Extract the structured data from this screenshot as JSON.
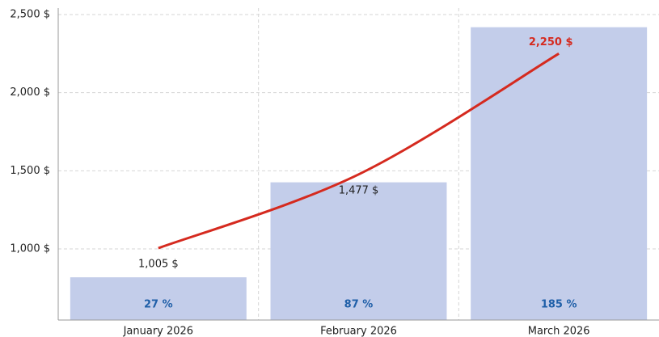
{
  "chart_data": {
    "type": "combo",
    "categories": [
      "January 2026",
      "February 2026",
      "March 2026"
    ],
    "series": [
      {
        "type": "bar",
        "axis": "y2",
        "color": "#c3cdea",
        "label_color": "#1f5fa8",
        "values": [
          27,
          87,
          185
        ],
        "value_labels": [
          "27 %",
          "87 %",
          "185 %"
        ]
      },
      {
        "type": "line",
        "color": "#d52a1f",
        "label_color": "#222222",
        "values": [
          1005,
          1477,
          2250
        ],
        "value_labels": [
          "1,005 $",
          "1,477 $",
          "2,250 $"
        ]
      }
    ],
    "ylim": [
      545,
      2500
    ],
    "yticks": [
      {
        "value": 1000,
        "label": "1,000 $"
      },
      {
        "value": 1500,
        "label": "1,500 $"
      },
      {
        "value": 2000,
        "label": "2,000 $"
      },
      {
        "value": 2500,
        "label": "2,500 $"
      }
    ],
    "y2lim": [
      0,
      193
    ],
    "grid": true
  }
}
